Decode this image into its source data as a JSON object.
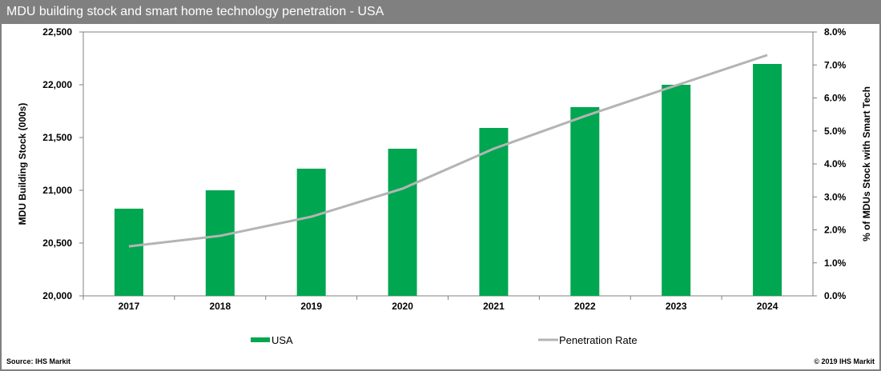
{
  "title": "MDU building stock and smart home technology penetration - USA",
  "source": "Source: IHS Markit",
  "copyright": "© 2019 IHS Markit",
  "chart_data": {
    "type": "bar+line",
    "categories": [
      "2017",
      "2018",
      "2019",
      "2020",
      "2021",
      "2022",
      "2023",
      "2024"
    ],
    "series": [
      {
        "name": "USA",
        "type": "bar",
        "axis": "left",
        "color": "#00A650",
        "values": [
          20826,
          21000,
          21205,
          21394,
          21591,
          21788,
          22000,
          22197
        ]
      },
      {
        "name": "Penetration Rate",
        "type": "line",
        "axis": "right",
        "color": "#B4B4B4",
        "values": [
          1.5,
          1.82,
          2.4,
          3.25,
          4.46,
          5.45,
          6.38,
          7.3
        ]
      }
    ],
    "ylabel": "MDU Building Stock (000s)",
    "y2label": "% of MDUs  Stock with Smart Tech",
    "ylim": [
      20000,
      22500
    ],
    "y_ticks": [
      "20,000",
      "20,500",
      "21,000",
      "21,500",
      "22,000",
      "22,500"
    ],
    "y2lim": [
      0,
      8
    ],
    "y2_ticks": [
      "0.0%",
      "1.0%",
      "2.0%",
      "3.0%",
      "4.0%",
      "5.0%",
      "6.0%",
      "7.0%",
      "8.0%"
    ],
    "grid": false,
    "legend_position": "bottom"
  }
}
